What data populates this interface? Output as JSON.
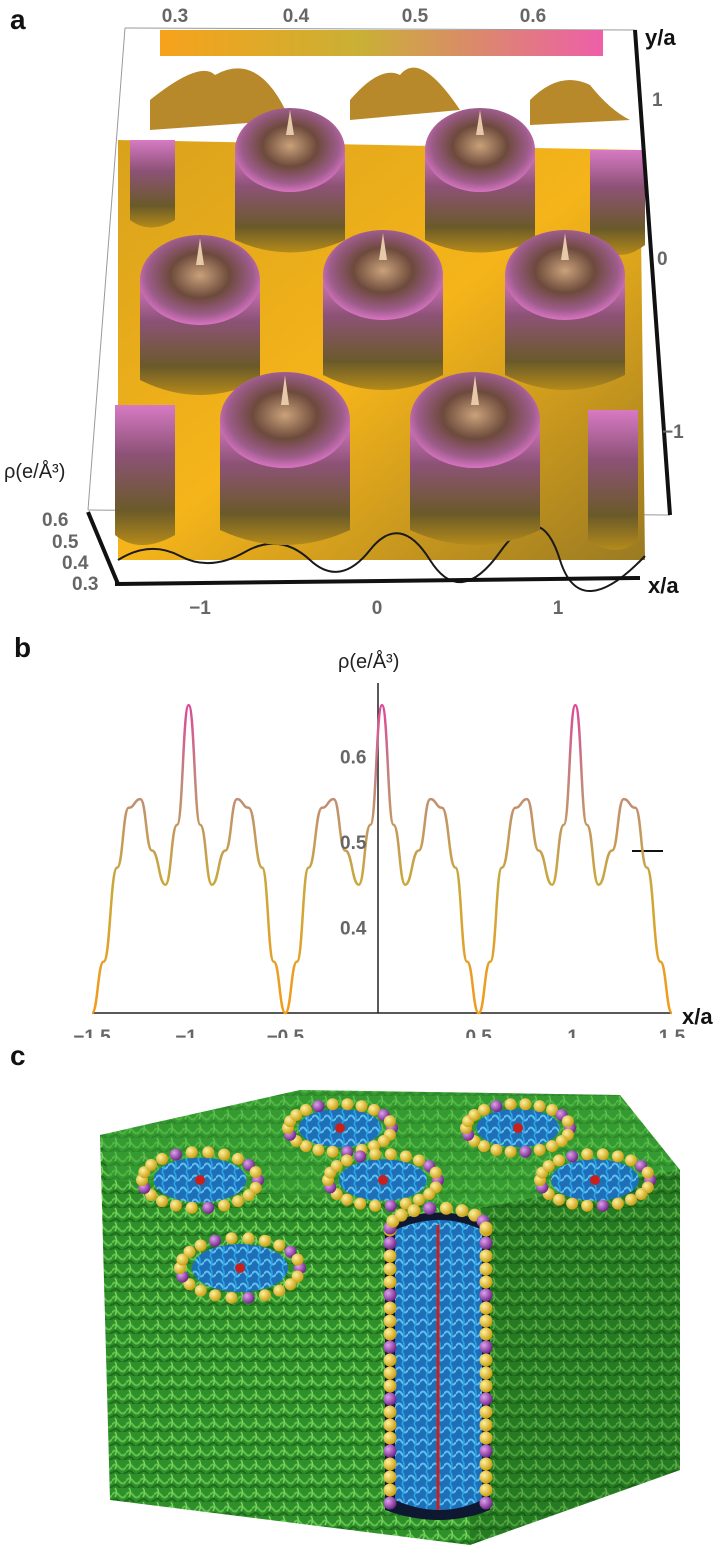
{
  "panels": {
    "a": {
      "letter": "a",
      "colorbar_ticks": [
        "0.3",
        "0.4",
        "0.5",
        "0.6"
      ],
      "y_axis_label": "y/a",
      "y_ticks": [
        "1",
        "0",
        "−1"
      ],
      "x_axis_label": "x/a",
      "x_ticks": [
        "−1",
        "0",
        "1"
      ],
      "z_axis_label": "ρ(e/Å³)",
      "z_ticks": [
        "0.6",
        "0.5",
        "0.4",
        "0.3"
      ],
      "colors": {
        "low": "#f7a21b",
        "mid": "#c9b035",
        "high": "#e063a8"
      }
    },
    "b": {
      "letter": "b",
      "y_axis_label": "ρ(e/Å³)",
      "x_axis_label": "x/a",
      "x_ticks": [
        "−1.5",
        "−1.",
        "−0.5",
        "0.5",
        "1.",
        "1.5"
      ],
      "y_ticks": [
        "0.6",
        "0.5",
        "0.4"
      ]
    },
    "c": {
      "letter": "c",
      "colors": {
        "chains": "#3aa83a",
        "core": "#2a9ad6",
        "head_yellow": "#e8c21a",
        "head_purple": "#9a3fb0",
        "center": "#c8211d"
      }
    }
  },
  "chart_data": {
    "type": "line",
    "x": [
      -1.5,
      -1.44,
      -1.37,
      -1.31,
      -1.25,
      -1.19,
      -1.12,
      -1.06,
      -1.0,
      -0.94,
      -0.88,
      -0.81,
      -0.75,
      -0.69,
      -0.62,
      -0.56,
      -0.5,
      -0.44,
      -0.38,
      -0.31,
      -0.25,
      -0.19,
      -0.12,
      -0.06,
      0.0,
      0.06,
      0.12,
      0.19,
      0.25,
      0.31,
      0.38,
      0.44,
      0.5,
      0.56,
      0.62,
      0.69,
      0.75,
      0.81,
      0.88,
      0.94,
      1.0,
      1.06,
      1.12,
      1.19,
      1.25,
      1.31,
      1.37,
      1.44,
      1.5
    ],
    "values": [
      0.3,
      0.36,
      0.47,
      0.54,
      0.55,
      0.49,
      0.45,
      0.52,
      0.66,
      0.52,
      0.45,
      0.49,
      0.55,
      0.54,
      0.47,
      0.36,
      0.3,
      0.36,
      0.47,
      0.54,
      0.55,
      0.49,
      0.45,
      0.52,
      0.66,
      0.52,
      0.45,
      0.49,
      0.55,
      0.54,
      0.47,
      0.36,
      0.3,
      0.36,
      0.47,
      0.54,
      0.55,
      0.49,
      0.45,
      0.52,
      0.66,
      0.52,
      0.45,
      0.49,
      0.55,
      0.54,
      0.47,
      0.36,
      0.3
    ],
    "xlabel": "x/a",
    "ylabel": "ρ(e/Å³)",
    "xlim": [
      -1.5,
      1.5
    ],
    "ylim": [
      0.3,
      0.68
    ],
    "x_ticks": [
      -1.5,
      -1.0,
      -0.5,
      0.5,
      1.0,
      1.5
    ],
    "y_ticks": [
      0.4,
      0.5,
      0.6
    ],
    "grid": false
  }
}
